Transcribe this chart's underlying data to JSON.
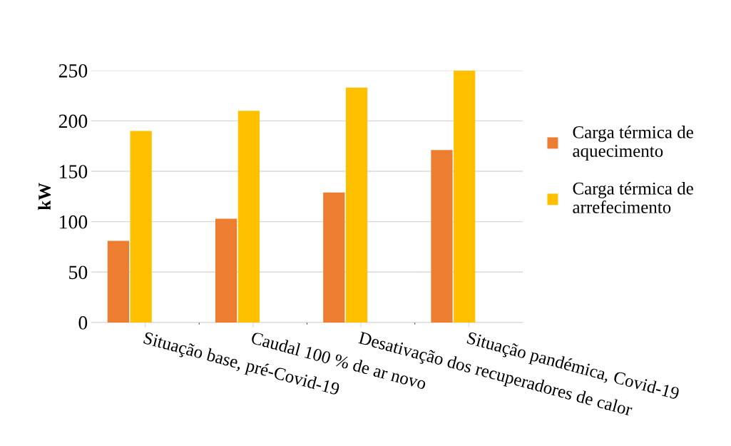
{
  "chart_data": {
    "type": "bar",
    "ylabel": "kW",
    "categories": [
      "Situação base, pré-Covid-19",
      "Caudal 100 % de ar novo",
      "Desativação dos recuperadores de calor",
      "Situação pandémica, Covid-19"
    ],
    "series": [
      {
        "name": "Carga térmica de aquecimento",
        "color": "#ed7d31",
        "values": [
          81,
          103,
          129,
          171
        ]
      },
      {
        "name": "Carga térmica de arrefecimento",
        "color": "#ffc000",
        "values": [
          190,
          210,
          233,
          250
        ]
      }
    ],
    "ylim": [
      0,
      250
    ],
    "yticks": [
      0,
      50,
      100,
      150,
      200,
      250
    ],
    "grid": "y",
    "legend": "right"
  }
}
